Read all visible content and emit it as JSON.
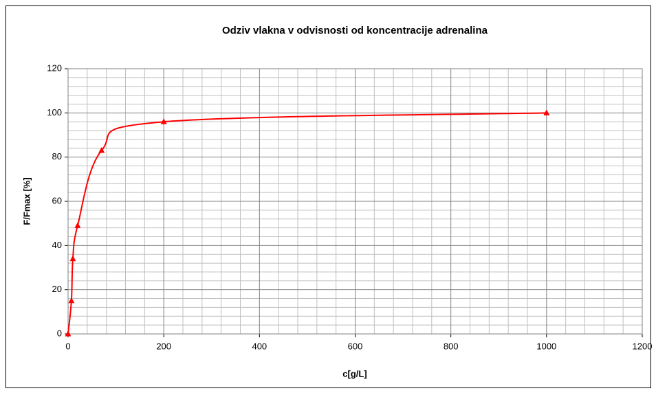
{
  "chart_data": {
    "type": "scatter",
    "title": "Odziv vlakna v odvisnosti od koncentracije adrenalina",
    "x_label": "c[g/L]",
    "y_label": "F/Fmax [%]",
    "series": [
      {
        "color": "#ff0000",
        "smooth": true,
        "marker": "triangle",
        "x": [
          0,
          7,
          10,
          20,
          70,
          200,
          1000
        ],
        "values": [
          0,
          15,
          34,
          49,
          83,
          96,
          100
        ]
      }
    ],
    "xlim": [
      0,
      1200
    ],
    "xticks": [
      0,
      200,
      400,
      600,
      800,
      1000,
      1200
    ],
    "ylim": [
      0,
      120
    ],
    "yticks": [
      0,
      20,
      40,
      60,
      80,
      100,
      120
    ],
    "grid": true,
    "minor_grid_divisions": 5
  }
}
